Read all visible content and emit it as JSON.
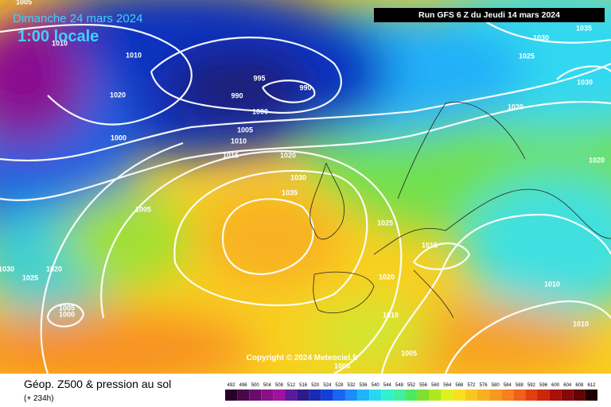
{
  "header": {
    "date": "Dimanche 24 mars 2024",
    "time": "1:00 locale",
    "run": "Run GFS 6 Z du Jeudi 14 mars 2024"
  },
  "copyright": "Copyright © 2024 Meteociel.fr",
  "footer": {
    "title": "Géop. Z500 & pression au sol",
    "lead": "(+ 234h)"
  },
  "scale": {
    "values": [
      492,
      496,
      500,
      504,
      508,
      512,
      516,
      520,
      524,
      528,
      532,
      536,
      540,
      544,
      548,
      552,
      556,
      560,
      564,
      568,
      572,
      576,
      580,
      584,
      588,
      592,
      596,
      600,
      604,
      608,
      612
    ],
    "colors": [
      "#2a002a",
      "#4a0848",
      "#6a0c6a",
      "#8a1088",
      "#a012a0",
      "#5a1aa0",
      "#2a1a8a",
      "#1a2ab4",
      "#1040d8",
      "#1a64f0",
      "#1e8cf8",
      "#20b4f8",
      "#28d8f0",
      "#30f0d0",
      "#40f0a0",
      "#50e860",
      "#80e030",
      "#b0e820",
      "#e0f020",
      "#f8e020",
      "#f8c820",
      "#f8b020",
      "#f89820",
      "#f88020",
      "#f06018",
      "#e04010",
      "#c82808",
      "#a81008",
      "#880808",
      "#600404",
      "#200000"
    ]
  },
  "isobars": [
    1005,
    1010,
    1010,
    1020,
    995,
    990,
    990,
    1000,
    1000,
    1005,
    1010,
    1015,
    1020,
    1030,
    1035,
    1005,
    1030,
    1025,
    1020,
    1005,
    1000,
    1030,
    1035,
    1025,
    1030,
    1020,
    1020,
    1025,
    1015,
    1020,
    1010,
    1010,
    1010,
    1005,
    1005
  ]
}
